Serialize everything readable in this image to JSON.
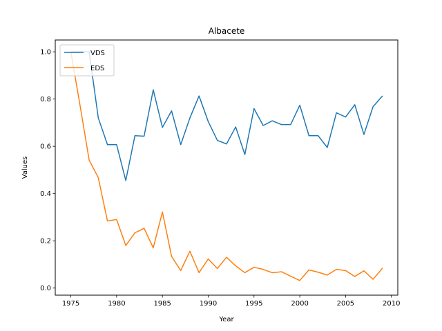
{
  "chart_data": {
    "type": "line",
    "title": "Albacete",
    "xlabel": "Year",
    "ylabel": "Values",
    "xlim": [
      1973.3,
      2010.7
    ],
    "ylim": [
      -0.03,
      1.05
    ],
    "xticks": [
      1975,
      1980,
      1985,
      1990,
      1995,
      2000,
      2005,
      2010
    ],
    "yticks": [
      0.0,
      0.2,
      0.4,
      0.6,
      0.8,
      1.0
    ],
    "xtick_labels": [
      "1975",
      "1980",
      "1985",
      "1990",
      "1995",
      "2000",
      "2005",
      "2010"
    ],
    "ytick_labels": [
      "0.0",
      "0.2",
      "0.4",
      "0.6",
      "0.8",
      "1.0"
    ],
    "grid": false,
    "legend": "top-left",
    "x": [
      1975,
      1976,
      1977,
      1978,
      1979,
      1980,
      1981,
      1982,
      1983,
      1984,
      1985,
      1986,
      1987,
      1988,
      1989,
      1990,
      1991,
      1992,
      1993,
      1994,
      1995,
      1996,
      1997,
      1998,
      1999,
      2000,
      2001,
      2002,
      2003,
      2004,
      2005,
      2006,
      2007,
      2008,
      2009
    ],
    "series": [
      {
        "name": "VDS",
        "color": "#1f77b4",
        "values": [
          1.0,
          1.0,
          1.0,
          0.72,
          0.607,
          0.607,
          0.455,
          0.645,
          0.643,
          0.839,
          0.68,
          0.75,
          0.607,
          0.72,
          0.813,
          0.705,
          0.625,
          0.61,
          0.682,
          0.565,
          0.76,
          0.688,
          0.708,
          0.692,
          0.692,
          0.774,
          0.645,
          0.645,
          0.595,
          0.742,
          0.724,
          0.776,
          0.65,
          0.768,
          0.812
        ]
      },
      {
        "name": "EDS",
        "color": "#ff7f0e",
        "values": [
          1.0,
          0.775,
          0.542,
          0.467,
          0.284,
          0.29,
          0.18,
          0.234,
          0.253,
          0.17,
          0.322,
          0.134,
          0.074,
          0.156,
          0.065,
          0.123,
          0.083,
          0.13,
          0.094,
          0.065,
          0.088,
          0.079,
          0.065,
          0.069,
          0.05,
          0.032,
          0.077,
          0.067,
          0.055,
          0.079,
          0.074,
          0.049,
          0.073,
          0.037,
          0.083
        ]
      }
    ]
  }
}
